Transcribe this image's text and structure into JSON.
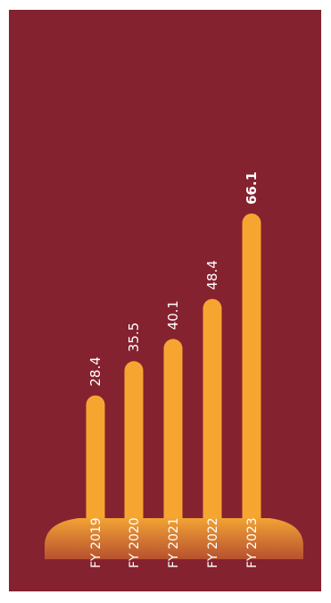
{
  "chart_data": {
    "type": "bar",
    "categories": [
      "FY 2019",
      "FY 2020",
      "FY 2021",
      "FY 2022",
      "FY 2023"
    ],
    "values": [
      28.4,
      35.5,
      40.1,
      48.4,
      66.1
    ],
    "value_labels": [
      "28.4",
      "35.5",
      "40.1",
      "48.4",
      "66.1"
    ],
    "highlight_index": 4,
    "ylim": [
      0,
      66.1
    ],
    "grid": false
  },
  "colors": {
    "background": "#85222f",
    "bar": "#f7a531",
    "base_top": "#f2a334",
    "base_bottom": "#b7512f",
    "label_text": "#ffffff"
  }
}
